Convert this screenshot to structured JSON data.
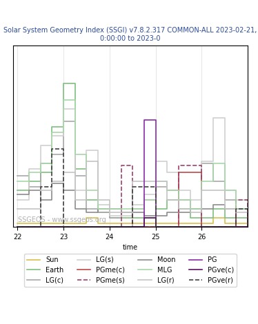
{
  "chart_data": {
    "type": "line",
    "title": "Solar System Geometry Index (SSGI) v7.8.2.317 COMMON-ALL 2023-02-21, 0:00:00 to 2023-0",
    "x_label": "time",
    "annotations": [
      "SSGEOS - www.ssgeos.org"
    ],
    "x": [
      22.0,
      22.25,
      22.5,
      22.75,
      23.0,
      23.25,
      23.5,
      23.75,
      24.0,
      24.25,
      24.5,
      24.75,
      25.0,
      25.25,
      25.5,
      25.75,
      26.0,
      26.25,
      26.5,
      26.75,
      27.0
    ],
    "xlim": [
      21.9,
      27.0
    ],
    "xticks": [
      22,
      23,
      24,
      25,
      26
    ],
    "ylim": [
      0,
      10
    ],
    "yticks": [],
    "tick_labels": "x",
    "grid": true,
    "legend": "bottom",
    "series": [
      {
        "name": "Sun",
        "color": "#d8c04a",
        "line_style": "solid",
        "values": [
          0.2,
          0.2,
          0.2,
          0.2,
          0.2,
          0.2,
          0.5,
          0.2,
          0.2,
          0.2,
          0.2,
          0.2,
          0.2,
          0.2,
          0.2,
          0.2,
          0.2,
          0.5,
          0.2,
          0.2,
          0.2
        ]
      },
      {
        "name": "Earth",
        "color": "#7fbf7f",
        "line_style": "solid",
        "values": [
          2.0,
          2.5,
          3.0,
          5.5,
          7.9,
          3.2,
          1.5,
          0.8,
          0.5,
          0.5,
          0.5,
          0.5,
          1.0,
          1.5,
          1.0,
          0.5,
          0.5,
          1.0,
          0.5,
          0.5,
          0.5
        ]
      },
      {
        "name": "LG(c)",
        "color": "#a8a8a8",
        "line_style": "solid",
        "values": [
          2.8,
          2.2,
          3.5,
          4.0,
          5.8,
          2.8,
          1.0,
          0.8,
          0.5,
          0.8,
          1.0,
          1.5,
          2.2,
          2.0,
          1.5,
          1.0,
          3.5,
          2.5,
          1.5,
          1.0,
          1.0
        ]
      },
      {
        "name": "LG(s)",
        "color": "#d0d0d0",
        "line_style": "solid",
        "values": [
          1.5,
          3.2,
          4.5,
          5.0,
          6.5,
          2.0,
          4.2,
          1.2,
          0.6,
          0.6,
          1.2,
          1.8,
          3.6,
          3.0,
          2.0,
          1.5,
          3.6,
          6.0,
          2.0,
          1.5,
          1.5
        ]
      },
      {
        "name": "PGme(c)",
        "color": "#c04848",
        "line_style": "solid",
        "values": [
          0,
          0,
          0,
          0,
          0,
          0,
          0,
          0,
          0,
          0,
          0,
          0,
          0,
          0,
          3.0,
          3.0,
          0,
          0,
          0,
          1.0,
          0
        ]
      },
      {
        "name": "PGme(s)",
        "color": "#a04068",
        "line_style": "dashed",
        "values": [
          0,
          0,
          0,
          0,
          0,
          0,
          0,
          0,
          0,
          3.4,
          0,
          0,
          0,
          0,
          3.4,
          3.4,
          0,
          0,
          0,
          1.5,
          0
        ]
      },
      {
        "name": "Moon",
        "color": "#8c8c8c",
        "line_style": "solid",
        "values": [
          1.8,
          2.0,
          1.5,
          2.4,
          2.0,
          1.0,
          0.8,
          1.0,
          1.0,
          0.8,
          0.8,
          0.6,
          0.6,
          0.8,
          0.8,
          1.0,
          1.0,
          1.2,
          1.0,
          1.0,
          1.0
        ]
      },
      {
        "name": "MLG",
        "color": "#a8d8a8",
        "line_style": "solid",
        "values": [
          2.5,
          3.0,
          3.5,
          5.2,
          7.0,
          4.0,
          2.0,
          1.0,
          1.0,
          1.0,
          1.0,
          1.5,
          2.5,
          2.0,
          1.5,
          1.0,
          2.5,
          3.5,
          2.0,
          1.0,
          1.0
        ]
      },
      {
        "name": "LG(r)",
        "color": "#c4c4c4",
        "line_style": "solid",
        "values": [
          1.0,
          1.0,
          2.0,
          2.5,
          3.0,
          1.5,
          3.6,
          1.5,
          0.8,
          0.8,
          2.5,
          2.5,
          2.5,
          1.5,
          1.0,
          0.8,
          2.0,
          2.0,
          1.0,
          0.8,
          0.8
        ]
      },
      {
        "name": "PG",
        "color": "#8a2aa8",
        "line_style": "solid",
        "values": [
          0,
          0,
          0,
          0,
          0,
          0,
          0,
          0,
          0,
          0,
          0,
          5.9,
          0,
          0,
          0,
          0,
          0,
          0,
          0,
          0,
          0
        ]
      },
      {
        "name": "PGve(c)",
        "color": "#5a1060",
        "line_style": "solid",
        "values": [
          0,
          0,
          0,
          0,
          0,
          0,
          0,
          0,
          0,
          0,
          0,
          0.5,
          0,
          0,
          0,
          0,
          0,
          0,
          0,
          0,
          0
        ]
      },
      {
        "name": "PGve(r)",
        "color": "#404040",
        "line_style": "dashed",
        "values": [
          0,
          0,
          2.2,
          4.3,
          0,
          0,
          0,
          0,
          0,
          0,
          2.2,
          2.2,
          0,
          0,
          0,
          0,
          0,
          0,
          0,
          1.0,
          0
        ]
      }
    ]
  }
}
